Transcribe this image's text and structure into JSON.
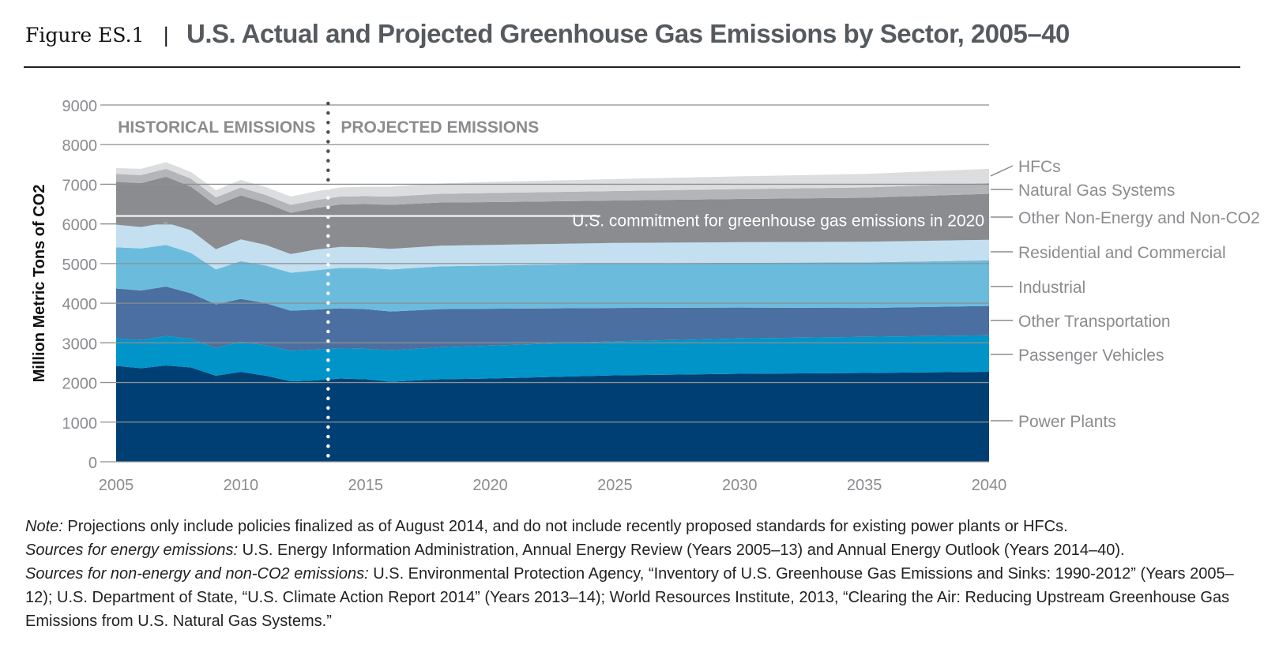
{
  "figure": {
    "label": "Figure ES.1",
    "separator": "|",
    "title": "U.S. Actual and Projected Greenhouse Gas Emissions by Sector, 2005–40"
  },
  "chart_data": {
    "type": "area",
    "stacked": true,
    "ylabel": "Million Metric Tons of CO2",
    "ylim": [
      0,
      9000
    ],
    "yticks": [
      0,
      1000,
      2000,
      3000,
      4000,
      5000,
      6000,
      7000,
      8000,
      9000
    ],
    "xlim": [
      2005,
      2040
    ],
    "xticks": [
      2005,
      2010,
      2015,
      2020,
      2025,
      2030,
      2035,
      2040
    ],
    "grid": true,
    "regions": [
      {
        "label": "HISTORICAL EMISSIONS",
        "from": 2005,
        "to": 2013.5
      },
      {
        "label": "PROJECTED EMISSIONS",
        "from": 2013.5,
        "to": 2040
      }
    ],
    "divider_x": 2013.5,
    "reference_line": {
      "y": 6200,
      "label": "U.S. commitment for greenhouse gas emissions in 2020"
    },
    "x": [
      2005,
      2006,
      2007,
      2008,
      2009,
      2010,
      2011,
      2012,
      2013,
      2014,
      2015,
      2016,
      2018,
      2020,
      2025,
      2030,
      2035,
      2040
    ],
    "series": [
      {
        "name": "Power Plants",
        "color": "#003f74",
        "values": [
          2420,
          2360,
          2430,
          2380,
          2170,
          2270,
          2170,
          2030,
          2050,
          2100,
          2080,
          2020,
          2080,
          2100,
          2180,
          2220,
          2240,
          2270
        ]
      },
      {
        "name": "Passenger Vehicles",
        "color": "#0094c8",
        "values": [
          690,
          710,
          740,
          720,
          700,
          760,
          770,
          770,
          780,
          760,
          770,
          790,
          810,
          830,
          860,
          890,
          910,
          920
        ]
      },
      {
        "name": "Other Transportation",
        "color": "#4a6fa0",
        "values": [
          1260,
          1250,
          1250,
          1150,
          1100,
          1080,
          1060,
          1010,
          1010,
          1010,
          1000,
          980,
          960,
          930,
          840,
          780,
          730,
          740
        ]
      },
      {
        "name": "Industrial",
        "color": "#6bbcdc",
        "values": [
          1040,
          1060,
          1050,
          1020,
          880,
          950,
          950,
          960,
          990,
          1020,
          1040,
          1060,
          1080,
          1090,
          1120,
          1130,
          1150,
          1150
        ]
      },
      {
        "name": "Residential and Commercial",
        "color": "#c3dff0",
        "values": [
          570,
          540,
          560,
          570,
          510,
          550,
          520,
          470,
          520,
          530,
          520,
          520,
          520,
          520,
          520,
          520,
          520,
          520
        ]
      },
      {
        "name": "Other Non-Energy and Non-CO2",
        "color": "#8a8c8f",
        "values": [
          1080,
          1110,
          1160,
          1100,
          1110,
          1110,
          1060,
          1040,
          1050,
          1070,
          1090,
          1110,
          1090,
          1080,
          1070,
          1090,
          1110,
          1160
        ]
      },
      {
        "name": "Natural Gas Systems",
        "color": "#b3b5b8",
        "values": [
          200,
          200,
          200,
          200,
          200,
          200,
          200,
          200,
          200,
          200,
          200,
          210,
          220,
          230,
          240,
          250,
          260,
          270
        ]
      },
      {
        "name": "HFCs",
        "color": "#dcdddf",
        "values": [
          150,
          160,
          170,
          170,
          180,
          190,
          200,
          210,
          220,
          230,
          240,
          250,
          260,
          280,
          300,
          320,
          340,
          360
        ]
      }
    ]
  },
  "notes": {
    "note_label": "Note:",
    "note_text": " Projections only include policies finalized as of August 2014, and do not include recently proposed standards for existing power plants or HFCs.",
    "energy_label": "Sources for energy emissions:",
    "energy_text": " U.S. Energy Information Administration, Annual Energy Review (Years 2005–13) and Annual Energy Outlook (Years 2014–40).",
    "nonenergy_label": "Sources for non-energy and non-CO2 emissions:",
    "nonenergy_text": " U.S. Environmental Protection Agency, “Inventory of U.S. Greenhouse Gas Emissions and Sinks: 1990-2012” (Years 2005–12); U.S. Department of State, “U.S. Climate Action Report 2014” (Years 2013–14); World Resources Institute, 2013, “Clearing the Air: Reducing Upstream Greenhouse Gas Emissions from U.S. Natural Gas Systems.”"
  }
}
